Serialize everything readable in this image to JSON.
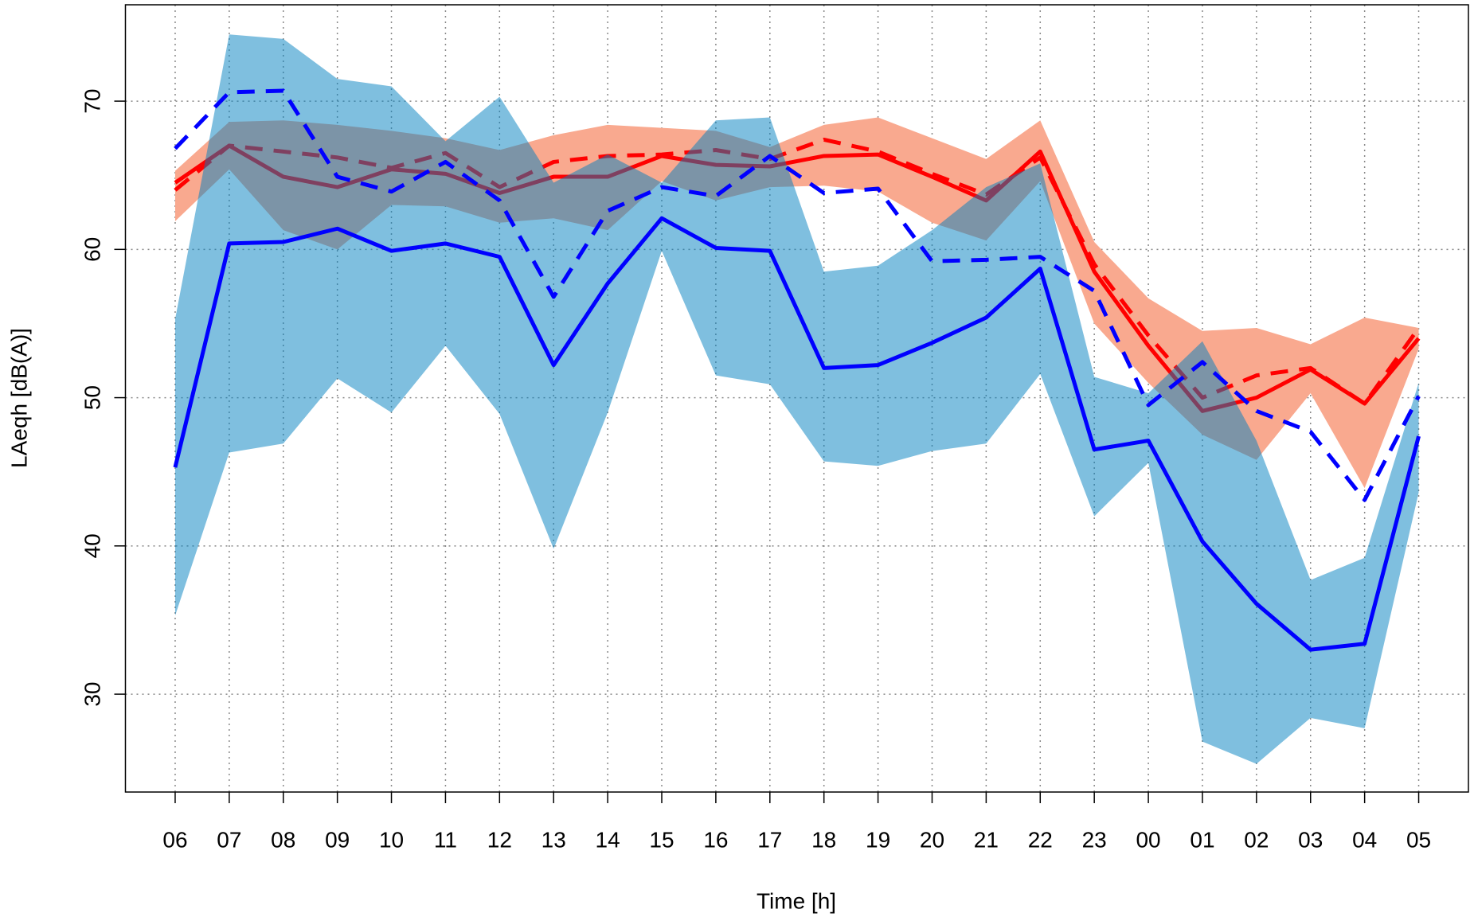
{
  "chart_data": {
    "type": "line",
    "x_label": "Time [h]",
    "y_label": "LAeqh [dB(A)]",
    "categories": [
      "06",
      "07",
      "08",
      "09",
      "10",
      "11",
      "12",
      "13",
      "14",
      "15",
      "16",
      "17",
      "18",
      "19",
      "20",
      "21",
      "22",
      "23",
      "00",
      "01",
      "02",
      "03",
      "04",
      "05"
    ],
    "ylim": [
      23.4,
      76.5
    ],
    "yticks": [
      30,
      40,
      50,
      60,
      70
    ],
    "grid": true,
    "bands": [
      {
        "color": "#f9a98f",
        "opacity": 1,
        "line_color": "#ff0000",
        "lower": [
          61.9,
          65.4,
          61.3,
          60.0,
          63.0,
          62.9,
          61.8,
          62.1,
          61.3,
          64.6,
          63.3,
          64.2,
          64.3,
          63.9,
          61.8,
          60.6,
          64.6,
          55.0,
          51.0,
          47.5,
          45.8,
          50.3,
          43.9,
          53.3
        ],
        "upper": [
          65.3,
          68.6,
          68.7,
          68.4,
          68.0,
          67.5,
          66.7,
          67.7,
          68.4,
          68.2,
          68.0,
          66.9,
          68.4,
          68.9,
          67.5,
          66.1,
          68.7,
          60.5,
          56.7,
          54.5,
          54.7,
          53.6,
          55.4,
          54.7
        ]
      },
      {
        "color": "#0080c0",
        "opacity": 0.5,
        "line_color": "#0000ff",
        "lower": [
          35.3,
          46.3,
          46.9,
          51.3,
          49.0,
          53.5,
          48.9,
          39.8,
          49.0,
          59.9,
          51.5,
          50.9,
          45.7,
          45.4,
          46.4,
          46.9,
          51.6,
          42.0,
          45.6,
          26.8,
          25.3,
          28.4,
          27.7,
          43.6
        ],
        "upper": [
          55.3,
          74.5,
          74.2,
          71.5,
          71.0,
          67.3,
          70.3,
          64.5,
          66.4,
          64.5,
          68.7,
          68.9,
          58.5,
          58.9,
          61.3,
          64.2,
          65.8,
          51.4,
          50.3,
          53.8,
          47.1,
          37.7,
          39.2,
          51.0
        ]
      }
    ],
    "series": [
      {
        "color": "#ff0000",
        "dashed": false,
        "values": [
          64.5,
          67.0,
          64.9,
          64.2,
          65.4,
          65.1,
          63.8,
          64.9,
          64.9,
          66.3,
          65.7,
          65.6,
          66.3,
          66.4,
          64.9,
          63.3,
          66.6,
          58.5,
          53.5,
          49.1,
          50.0,
          51.9,
          49.6,
          54.0
        ]
      },
      {
        "color": "#ff0000",
        "dashed": true,
        "values": [
          64.0,
          67.0,
          66.6,
          66.2,
          65.5,
          66.5,
          64.2,
          65.9,
          66.3,
          66.4,
          66.7,
          66.1,
          67.4,
          66.6,
          65.1,
          63.7,
          66.2,
          59.0,
          54.2,
          50.0,
          51.5,
          52.0,
          49.6,
          54.7
        ]
      },
      {
        "color": "#0000ff",
        "dashed": false,
        "values": [
          45.3,
          60.4,
          60.5,
          61.4,
          59.9,
          60.4,
          59.5,
          52.2,
          57.7,
          62.1,
          60.1,
          59.9,
          52.0,
          52.2,
          53.7,
          55.4,
          58.7,
          46.5,
          47.1,
          40.3,
          36.1,
          33.0,
          33.4,
          47.4
        ]
      },
      {
        "color": "#0000ff",
        "dashed": true,
        "values": [
          66.8,
          70.6,
          70.7,
          64.9,
          63.9,
          65.9,
          63.3,
          56.8,
          62.6,
          64.2,
          63.6,
          66.3,
          63.8,
          64.1,
          59.2,
          59.3,
          59.5,
          57.2,
          49.5,
          52.4,
          49.1,
          47.7,
          43.1,
          50.1
        ]
      }
    ]
  }
}
